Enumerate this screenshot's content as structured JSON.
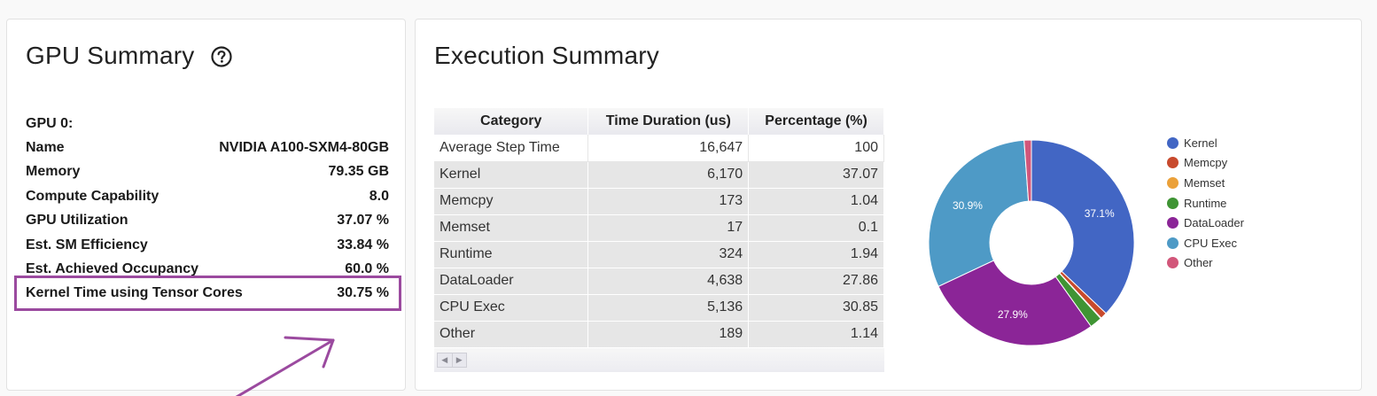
{
  "gpu_summary": {
    "title": "GPU Summary",
    "rows": [
      {
        "label": "GPU 0:",
        "value": ""
      },
      {
        "label": "Name",
        "value": "NVIDIA A100-SXM4-80GB"
      },
      {
        "label": "Memory",
        "value": "79.35 GB"
      },
      {
        "label": "Compute Capability",
        "value": "8.0"
      },
      {
        "label": "GPU Utilization",
        "value": "37.07 %"
      },
      {
        "label": "Est. SM Efficiency",
        "value": "33.84 %"
      },
      {
        "label": "Est. Achieved Occupancy",
        "value": "60.0 %"
      },
      {
        "label": "Kernel Time using Tensor Cores",
        "value": "30.75 %"
      }
    ],
    "annotation_color": "#9b4a9f"
  },
  "execution_summary": {
    "title": "Execution Summary",
    "table": {
      "headers": [
        "Category",
        "Time Duration (us)",
        "Percentage (%)"
      ],
      "rows": [
        [
          "Average Step Time",
          "16,647",
          "100"
        ],
        [
          "Kernel",
          "6,170",
          "37.07"
        ],
        [
          "Memcpy",
          "173",
          "1.04"
        ],
        [
          "Memset",
          "17",
          "0.1"
        ],
        [
          "Runtime",
          "324",
          "1.94"
        ],
        [
          "DataLoader",
          "4,638",
          "27.86"
        ],
        [
          "CPU Exec",
          "5,136",
          "30.85"
        ],
        [
          "Other",
          "189",
          "1.14"
        ]
      ]
    }
  },
  "chart_data": {
    "type": "pie",
    "donut": true,
    "categories": [
      "Kernel",
      "Memcpy",
      "Memset",
      "Runtime",
      "DataLoader",
      "CPU Exec",
      "Other"
    ],
    "values": [
      37.07,
      1.04,
      0.1,
      1.94,
      27.86,
      30.85,
      1.14
    ],
    "slice_labels": [
      "37.1%",
      "",
      "",
      "",
      "27.9%",
      "30.9%",
      ""
    ],
    "colors": [
      "#4266c4",
      "#c84a2d",
      "#eba13a",
      "#3f9434",
      "#8b2597",
      "#4e9ac6",
      "#d2567a"
    ],
    "legend_position": "right"
  }
}
